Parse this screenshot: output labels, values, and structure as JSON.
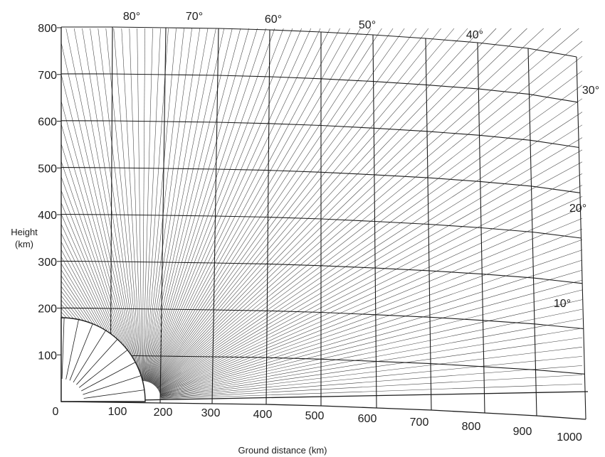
{
  "chart_data": {
    "type": "diagram",
    "x_axis": {
      "label": "Ground distance (km)",
      "ticks": [
        "0",
        "100",
        "200",
        "300",
        "400",
        "500",
        "600",
        "700",
        "800",
        "900",
        "1000"
      ]
    },
    "y_axis": {
      "label_line1": "Height",
      "label_line2": "(km)",
      "ticks": [
        "100",
        "200",
        "300",
        "400",
        "500",
        "600",
        "700",
        "800"
      ]
    },
    "elevation_labels": [
      "80°",
      "70°",
      "60°",
      "50°",
      "40°",
      "30°",
      "20°",
      "10°"
    ],
    "elevation_angles": [
      80,
      70,
      60,
      50,
      40,
      30,
      20,
      10
    ]
  },
  "colors": {
    "ink": "#1c1c1c",
    "paper": "#ffffff"
  }
}
